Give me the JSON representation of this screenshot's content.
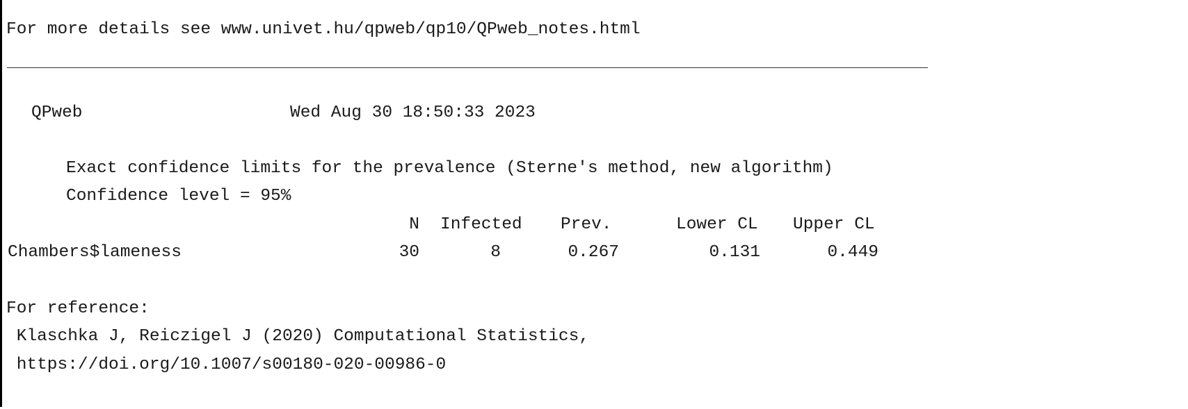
{
  "output": {
    "details_line": "For more details see www.univet.hu/qpweb/qp10/QPweb_notes.html",
    "app_name": "QPweb",
    "timestamp": "Wed Aug 30 18:50:33 2023",
    "method_line": "Exact confidence limits for the prevalence (Sterne's method, new algorithm)",
    "confidence_line": "Confidence level = 95%",
    "table": {
      "headers": {
        "n": "N",
        "infected": "Infected",
        "prev": "Prev.",
        "lower": "Lower CL",
        "upper": "Upper CL"
      },
      "rows": [
        {
          "label": "Chambers$lameness",
          "n": "30",
          "infected": "8",
          "prev": "0.267",
          "lower": "0.131",
          "upper": "0.449"
        }
      ]
    },
    "reference_heading": "For reference:",
    "reference_citation": " Klaschka J, Reiczigel J (2020) Computational Statistics,",
    "reference_doi": " https://doi.org/10.1007/s00180-020-00986-0"
  }
}
